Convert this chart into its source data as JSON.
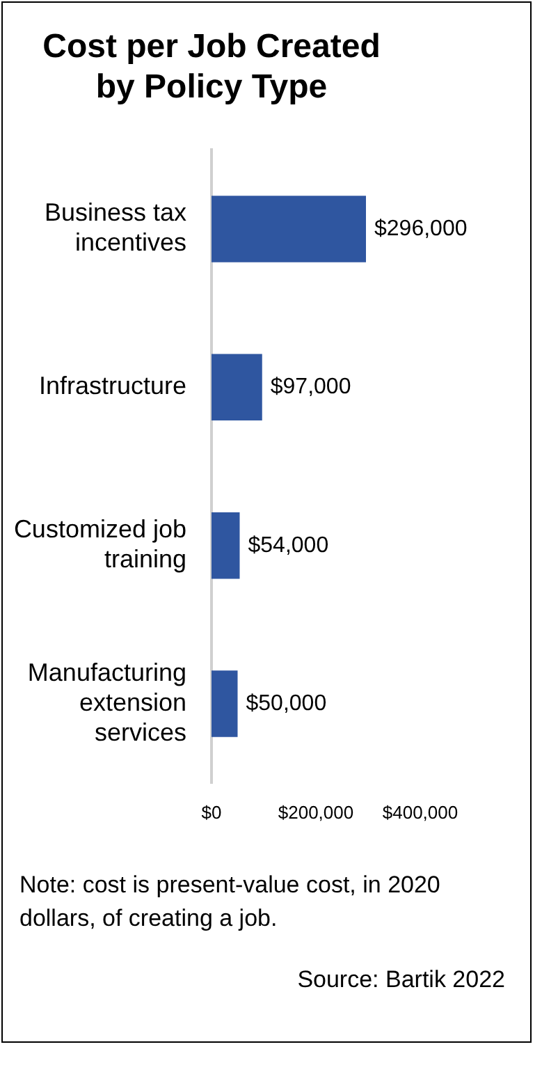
{
  "chart_data": {
    "type": "bar",
    "orientation": "horizontal",
    "title": "Cost per Job Created by Policy Type",
    "categories": [
      "Business tax incentives",
      "Infrastructure",
      "Customized job training",
      "Manufacturing extension services"
    ],
    "values": [
      296000,
      97000,
      54000,
      50000
    ],
    "color": "#2f56a0",
    "value_labels": [
      "$296,000",
      "$97,000",
      "$54,000",
      "$50,000"
    ],
    "xlim": [
      0,
      400000
    ],
    "xticks": [
      {
        "value": 0,
        "label": "$0"
      },
      {
        "value": 200000,
        "label": "$200,000"
      },
      {
        "value": 400000,
        "label": "$400,000"
      }
    ],
    "grid": false,
    "legend": false,
    "annotations": [
      "Note: cost is present-value cost, in 2020 dollars, of creating a job.",
      "Source: Bartik 2022"
    ]
  }
}
